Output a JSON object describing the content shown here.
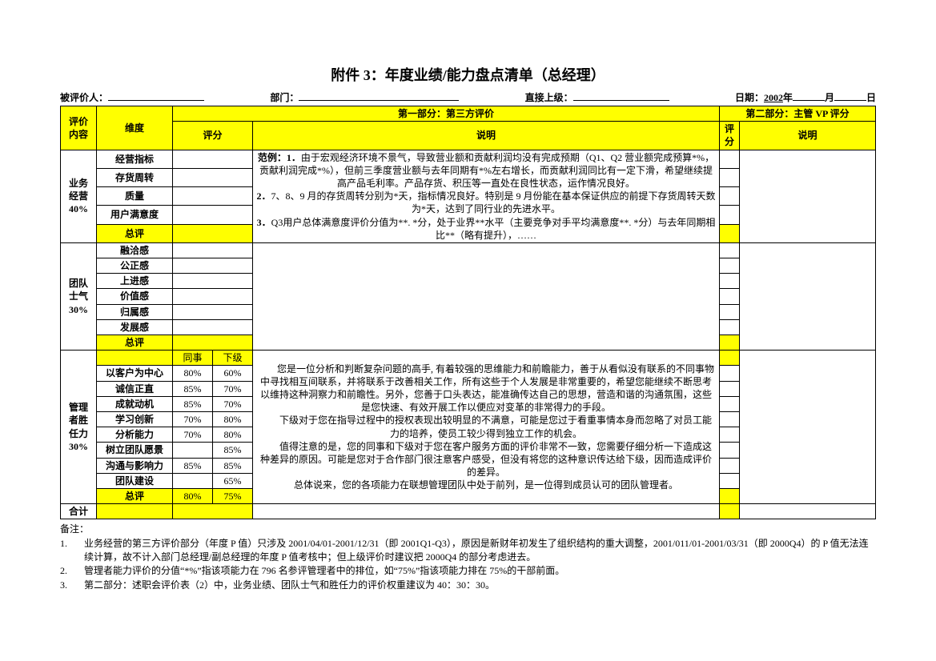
{
  "title": "附件 3：年度业绩/能力盘点清单（总经理）",
  "header": {
    "evaluee_label": "被评价人：",
    "dept_label": "部门：",
    "supervisor_label": "直接上级：",
    "date_label": "日期：",
    "year": "2002",
    "year_suffix": "年",
    "month_suffix": "月",
    "day_suffix": "日"
  },
  "tableHead": {
    "col_eval_content": "评价\n内容",
    "col_dimension": "维度",
    "section1": "第一部分：第三方评价",
    "section2": "第二部分：主管 VP 评分",
    "col_score": "评分",
    "col_desc": "说明",
    "col_score2": "评\n分",
    "col_desc2": "说明"
  },
  "groups": [
    {
      "name": "业务\n经营\n40%",
      "rows": [
        {
          "dim": "经营指标"
        },
        {
          "dim": "存货周转"
        },
        {
          "dim": "质量"
        },
        {
          "dim": "用户满意度"
        },
        {
          "dim": "总评",
          "highlight": true
        }
      ],
      "desc": "范例：1．由于宏观经济环境不景气，导致营业额和贡献利润均没有完成预期（Q1、Q2 营业额完成预算*%，贡献利润完成*%），但前三季度营业额与去年同期有*%左右增长，而贡献利润同比有一定下滑，希望继续提高产品毛利率。产品存货、积压等一直处在良性状态，运作情况良好。\n2．7、8、9 月的存货周转分别为*天，指标情况良好。特别是 9 月份能在基本保证供应的前提下存货周转天数为*天，达到了同行业的先进水平。\n3．Q3用户总体满意度评价分值为**. *分，处于业界**水平（主要竞争对手平均满意度**. *分）与去年同期相比**（略有提升），……"
    },
    {
      "name": "团队\n士气\n30%",
      "rows": [
        {
          "dim": "融洽感"
        },
        {
          "dim": "公正感"
        },
        {
          "dim": "上进感"
        },
        {
          "dim": "价值感"
        },
        {
          "dim": "归属感"
        },
        {
          "dim": "发展感"
        },
        {
          "dim": "总评",
          "highlight": true
        }
      ],
      "desc": ""
    },
    {
      "name": "管理\n者胜\n任力\n30%",
      "subheads": [
        "同事",
        "下级"
      ],
      "rows": [
        {
          "dim": "以客户为中心",
          "s1": "80%",
          "s2": "60%"
        },
        {
          "dim": "诚信正直",
          "s1": "85%",
          "s2": "70%"
        },
        {
          "dim": "成就动机",
          "s1": "85%",
          "s2": "70%"
        },
        {
          "dim": "学习创新",
          "s1": "70%",
          "s2": "80%"
        },
        {
          "dim": "分析能力",
          "s1": "70%",
          "s2": "80%"
        },
        {
          "dim": "树立团队愿景",
          "s1": "",
          "s2": "85%"
        },
        {
          "dim": "沟通与影响力",
          "s1": "85%",
          "s2": "85%"
        },
        {
          "dim": "团队建设",
          "s1": "",
          "s2": "65%"
        },
        {
          "dim": "总评",
          "s1": "80%",
          "s2": "75%",
          "highlight": true
        }
      ],
      "desc": "　　您是一位分析和判断复杂问题的高手, 有着较强的思维能力和前瞻能力，善于从看似没有联系的不同事物中寻找相互间联系，并将联系于改善相关工作，所有这些于个人发展是非常重要的，希望您能继续不断思考以维持这种洞察力和前瞻性。另外，您善于口头表达，能准确传达自己的思想，营造和谐的沟通氛围，这些是您快速、有效开展工作以便应对变革的非常得力的手段。\n　　下级对于您在指导过程中的授权表现出较明显的不满意，可能是您过于看重事情本身而忽略了对员工能力的培养，使员工较少得到独立工作的机会。\n　　值得注意的是，您的同事和下级对于您在客户服务方面的评价非常不一致，您需要仔细分析一下造成这种差异的原因。可能是您对于合作部门很注意客户感受，但没有将您的这种意识传达给下级，因而造成评价的差异。\n总体说来，您的各项能力在联想管理团队中处于前列，是一位得到成员认可的团队管理者。"
    }
  ],
  "total_label": "合计",
  "notes": {
    "heading": "备注：",
    "items": [
      "业务经营的第三方评价部分（年度 P 值）只涉及 2001/04/01-2001/12/31（即 2001Q1-Q3），原因是新财年初发生了组织结构的重大调整，2001/011/01-2001/03/31（即 2000Q4）的 P 值无法连续计算，故不计入部门总经理/副总经理的年度 P 值考核中；但上级评价时建议把 2000Q4 的部分考虑进去。",
      "管理者能力评价的分值“*%”指该项能力在 796 名参评管理者中的排位，如“75%”指该项能力排在 75%的干部前面。",
      "第二部分：述职会评价表（2）中，业务业绩、团队士气和胜任力的评价权重建议为 40：30：30。"
    ]
  },
  "colors": {
    "highlight": "#ffff00",
    "border": "#000000",
    "text": "#000000",
    "background": "#ffffff"
  }
}
